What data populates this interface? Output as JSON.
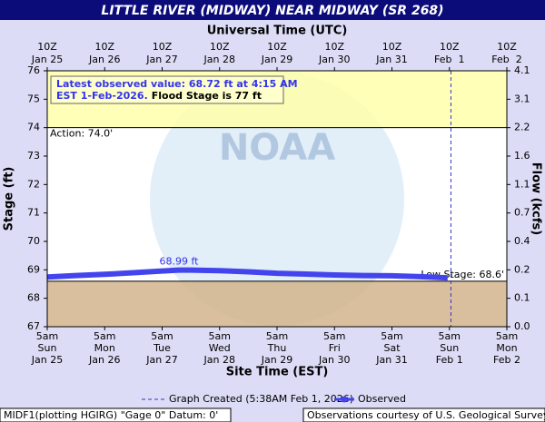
{
  "chart_data": {
    "type": "line",
    "title": "LITTLE RIVER (MIDWAY) NEAR MIDWAY (SR 268)",
    "x_label": "Site Time (EST)",
    "x2_label": "Universal Time (UTC)",
    "y_label": "Stage (ft)",
    "y2_label": "Flow (kcfs)",
    "watermark": "NOAA",
    "xlim": [
      "2026-01-25T05:00-05:00",
      "2026-02-02T05:00-05:00"
    ],
    "xticks": [
      {
        "value": "2026-01-25T05:00-05:00",
        "label": [
          "5am",
          "Sun",
          "Jan 25"
        ]
      },
      {
        "value": "2026-01-26T05:00-05:00",
        "label": [
          "5am",
          "Mon",
          "Jan 26"
        ]
      },
      {
        "value": "2026-01-27T05:00-05:00",
        "label": [
          "5am",
          "Tue",
          "Jan 27"
        ]
      },
      {
        "value": "2026-01-28T05:00-05:00",
        "label": [
          "5am",
          "Wed",
          "Jan 28"
        ]
      },
      {
        "value": "2026-01-29T05:00-05:00",
        "label": [
          "5am",
          "Thu",
          "Jan 29"
        ]
      },
      {
        "value": "2026-01-30T05:00-05:00",
        "label": [
          "5am",
          "Fri",
          "Jan 30"
        ]
      },
      {
        "value": "2026-01-31T05:00-05:00",
        "label": [
          "5am",
          "Sat",
          "Jan 31"
        ]
      },
      {
        "value": "2026-02-01T05:00-05:00",
        "label": [
          "5am",
          "Sun",
          "Feb 1"
        ]
      },
      {
        "value": "2026-02-02T05:00-05:00",
        "label": [
          "5am",
          "Mon",
          "Feb 2"
        ]
      }
    ],
    "x2ticks": [
      {
        "value": "2026-01-25T10:00Z",
        "label": [
          "10Z",
          "Jan 25"
        ]
      },
      {
        "value": "2026-01-26T10:00Z",
        "label": [
          "10Z",
          "Jan 26"
        ]
      },
      {
        "value": "2026-01-27T10:00Z",
        "label": [
          "10Z",
          "Jan 27"
        ]
      },
      {
        "value": "2026-01-28T10:00Z",
        "label": [
          "10Z",
          "Jan 28"
        ]
      },
      {
        "value": "2026-01-29T10:00Z",
        "label": [
          "10Z",
          "Jan 29"
        ]
      },
      {
        "value": "2026-01-30T10:00Z",
        "label": [
          "10Z",
          "Jan 30"
        ]
      },
      {
        "value": "2026-01-31T10:00Z",
        "label": [
          "10Z",
          "Jan 31"
        ]
      },
      {
        "value": "2026-02-01T10:00Z",
        "label": [
          "10Z",
          "Feb  1"
        ]
      },
      {
        "value": "2026-02-02T10:00Z",
        "label": [
          "10Z",
          "Feb  2"
        ]
      }
    ],
    "ylim": [
      67,
      76
    ],
    "yticks": [
      67,
      68,
      69,
      70,
      71,
      72,
      73,
      74,
      75,
      76
    ],
    "y2ticks": [
      {
        "value": 0,
        "label": "0.0"
      },
      0.1,
      0.2,
      0.4,
      0.7,
      1.1,
      1.6,
      2.2,
      3.1,
      4.1
    ],
    "grid": false,
    "thresholds": [
      {
        "label": "Action: 74.0'",
        "value": 74,
        "band": "above",
        "color": "#ffffaa"
      },
      {
        "label": "Low Stage: 68.6'",
        "value": 68.6,
        "band": "below",
        "color": "#d2b48c"
      }
    ],
    "created": {
      "x": "2026-02-01T05:38-05:00",
      "label": "Graph Created (5:38AM Feb 1, 2026)",
      "color": "#3333cc"
    },
    "info": [
      "Latest observed value: 68.72 ft at 4:15 AM",
      "EST 1-Feb-2026.",
      "Flood Stage is 77 ft"
    ],
    "series": [
      {
        "name": "Observed",
        "color": "#4444ee",
        "x": [
          "2026-01-25T05:00-05:00",
          "2026-01-25T17:00-05:00",
          "2026-01-26T05:00-05:00",
          "2026-01-26T17:00-05:00",
          "2026-01-27T05:00-05:00",
          "2026-01-27T12:00-05:00",
          "2026-01-27T17:00-05:00",
          "2026-01-28T05:00-05:00",
          "2026-01-28T17:00-05:00",
          "2026-01-29T05:00-05:00",
          "2026-01-29T17:00-05:00",
          "2026-01-30T05:00-05:00",
          "2026-01-30T17:00-05:00",
          "2026-01-31T05:00-05:00",
          "2026-01-31T17:00-05:00",
          "2026-02-01T04:15-05:00"
        ],
        "values": [
          68.75,
          68.8,
          68.84,
          68.9,
          68.96,
          68.99,
          68.99,
          68.97,
          68.93,
          68.88,
          68.85,
          68.82,
          68.8,
          68.79,
          68.76,
          68.72
        ],
        "value_labels": [
          null,
          null,
          null,
          null,
          null,
          "68.99 ft",
          null,
          null,
          null,
          null,
          null,
          null,
          null,
          null,
          null,
          null
        ]
      }
    ],
    "footer_left": "MIDF1(plotting HGIRG) \"Gage 0\" Datum: 0'",
    "footer_right": "Observations courtesy of U.S. Geological Survey"
  }
}
